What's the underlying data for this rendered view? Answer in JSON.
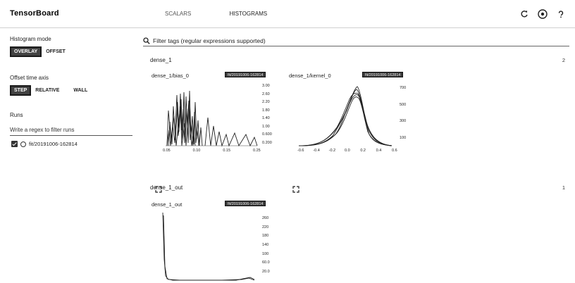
{
  "header": {
    "brand": "TensorBoard",
    "nav": [
      "SCALARS",
      "HISTOGRAMS"
    ],
    "icons": [
      "refresh-icon",
      "settings-icon",
      "help-icon"
    ]
  },
  "sidebar": {
    "histogram_mode_label": "Histogram mode",
    "histogram_mode_options": [
      "OVERLAY",
      "OFFSET"
    ],
    "histogram_mode_selected": "OVERLAY",
    "offset_axis_label": "Offset time axis",
    "offset_axis_options": [
      "STEP",
      "RELATIVE",
      "WALL"
    ],
    "offset_axis_selected": "STEP",
    "runs_label": "Runs",
    "runs_filter_placeholder": "Write a regex to filter runs",
    "runs": [
      {
        "name": "fit/20191006-162814",
        "checked": true
      }
    ]
  },
  "main": {
    "search_placeholder": "Filter tags (regular expressions supported)",
    "sections": [
      {
        "title": "dense_1",
        "count": "2",
        "cards": [
          {
            "title": "dense_1/bias_0",
            "run": "fit/20191006-162814",
            "chart_data": {
              "type": "line",
              "x_ticks": [
                "0.05",
                "0.10",
                "0.15",
                "0.25"
              ],
              "y_ticks": [
                "3.00",
                "2.60",
                "2.20",
                "1.80",
                "1.40",
                "1.00",
                "0.600",
                "0.200"
              ]
            }
          },
          {
            "title": "dense_1/kernel_0",
            "run": "fit/20191006-162814",
            "chart_data": {
              "type": "line",
              "x_ticks": [
                "-0.6",
                "-0.4",
                "-0.2",
                "0.0",
                "0.2",
                "0.4",
                "0.6"
              ],
              "y_ticks": [
                "700",
                "500",
                "300",
                "100"
              ]
            }
          }
        ]
      },
      {
        "title": "dense_1_out",
        "count": "1",
        "cards": [
          {
            "title": "dense_1_out",
            "run": "fit/20191006-162814",
            "chart_data": {
              "type": "line",
              "y_ticks": [
                "260",
                "220",
                "180",
                "140",
                "100",
                "60.0",
                "20.0"
              ]
            }
          }
        ]
      }
    ]
  }
}
